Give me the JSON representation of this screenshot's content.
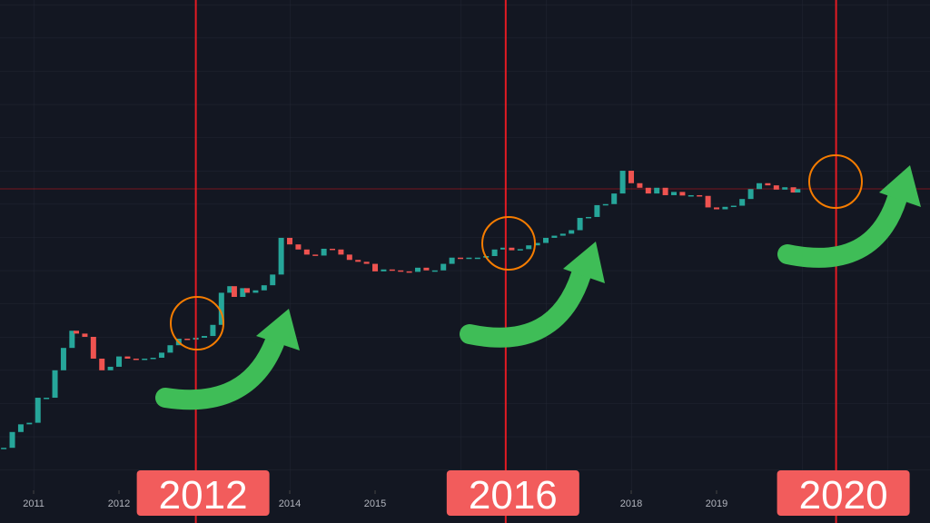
{
  "chart_data": {
    "type": "candlestick",
    "log_scale": true,
    "color_up": "#26a69a",
    "color_down": "#ef5350",
    "xlim": [
      2010.606,
      2021.5
    ],
    "ylim": [
      0.0155,
      34000000
    ],
    "xticks": [
      2011,
      2012,
      2014,
      2015,
      2018,
      2019
    ],
    "x": [
      2010.65,
      2010.75,
      2010.85,
      2010.95,
      2011.05,
      2011.15,
      2011.25,
      2011.35,
      2011.45,
      2011.5,
      2011.6,
      2011.7,
      2011.8,
      2011.9,
      2012.0,
      2012.1,
      2012.2,
      2012.3,
      2012.4,
      2012.5,
      2012.6,
      2012.7,
      2012.8,
      2012.9,
      2013.0,
      2013.1,
      2013.2,
      2013.3,
      2013.35,
      2013.45,
      2013.5,
      2013.6,
      2013.7,
      2013.8,
      2013.9,
      2014.0,
      2014.1,
      2014.2,
      2014.3,
      2014.4,
      2014.5,
      2014.6,
      2014.7,
      2014.8,
      2014.9,
      2015.0,
      2015.1,
      2015.2,
      2015.3,
      2015.4,
      2015.5,
      2015.6,
      2015.7,
      2015.8,
      2015.9,
      2016.0,
      2016.1,
      2016.2,
      2016.3,
      2016.4,
      2016.5,
      2016.6,
      2016.7,
      2016.8,
      2016.9,
      2017.0,
      2017.1,
      2017.2,
      2017.3,
      2017.4,
      2017.5,
      2017.6,
      2017.7,
      2017.8,
      2017.9,
      2018.0,
      2018.1,
      2018.2,
      2018.3,
      2018.4,
      2018.5,
      2018.6,
      2018.7,
      2018.8,
      2018.9,
      2019.0,
      2019.1,
      2019.2,
      2019.3,
      2019.4,
      2019.5,
      2019.6,
      2019.7,
      2019.8,
      2019.9,
      2019.95
    ],
    "values": [
      0.1,
      0.2,
      0.28,
      0.3,
      0.9,
      0.9,
      3,
      8,
      17,
      15,
      13,
      5,
      3,
      3.5,
      5.5,
      5,
      4.9,
      5,
      5.2,
      6.5,
      9,
      12,
      11.5,
      12.5,
      13.5,
      22,
      90,
      120,
      75,
      110,
      90,
      100,
      125,
      200,
      1000,
      750,
      600,
      480,
      460,
      620,
      600,
      480,
      380,
      350,
      320,
      230,
      250,
      240,
      230,
      225,
      270,
      240,
      240,
      320,
      420,
      400,
      420,
      420,
      450,
      600,
      650,
      580,
      610,
      720,
      800,
      1000,
      1100,
      1200,
      1400,
      2400,
      2500,
      4200,
      4400,
      7000,
      19000,
      11000,
      9000,
      7000,
      9000,
      6500,
      7500,
      6400,
      6500,
      6300,
      3800,
      3500,
      3900,
      4100,
      5500,
      8500,
      11000,
      10000,
      8300,
      9200,
      7300,
      8500
    ],
    "annotations": [
      {
        "label": "2012",
        "x": 2012.9,
        "color": "#e31b23"
      },
      {
        "label": "2016",
        "x": 2016.53,
        "color": "#e31b23"
      },
      {
        "label": "2020",
        "x": 2020.4,
        "color": "#e31b23"
      }
    ]
  }
}
